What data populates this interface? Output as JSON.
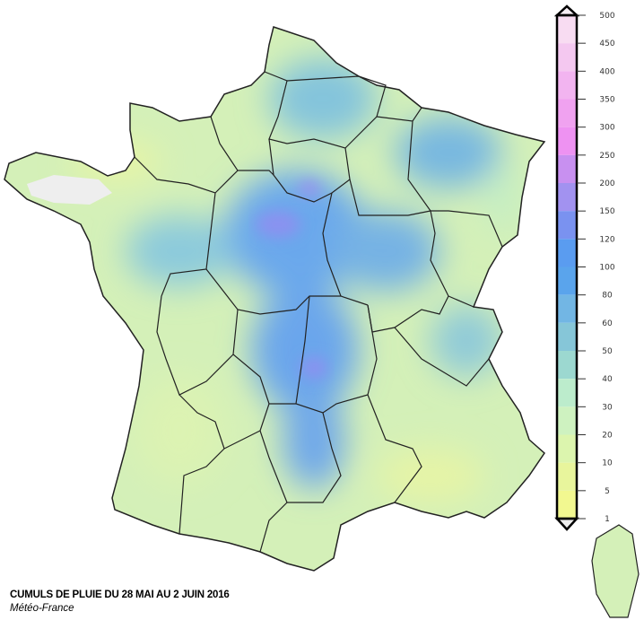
{
  "caption": {
    "title": "CUMULS DE PLUIE DU 28 MAI AU 2 JUIN 2016",
    "source": "Météo-France"
  },
  "legend": {
    "ticks": [
      "500",
      "450",
      "400",
      "350",
      "300",
      "250",
      "200",
      "150",
      "120",
      "100",
      "80",
      "60",
      "50",
      "40",
      "30",
      "20",
      "10",
      "5",
      "1"
    ],
    "colors_top_to_bottom": [
      "#f8dcf2",
      "#f4c8f0",
      "#f2b4f0",
      "#f0a2f0",
      "#ee92f2",
      "#c890f0",
      "#a292f0",
      "#7a92f0",
      "#5a9cf0",
      "#5aa4ec",
      "#72b6e4",
      "#86c6d8",
      "#9cd8d0",
      "#bceccc",
      "#cef2c0",
      "#dcf5ae",
      "#e8f59c",
      "#f2f890"
    ]
  },
  "map": {
    "regions": [
      "France métropolitaine",
      "Corse"
    ],
    "missing_data_color": "#eeeeee"
  }
}
